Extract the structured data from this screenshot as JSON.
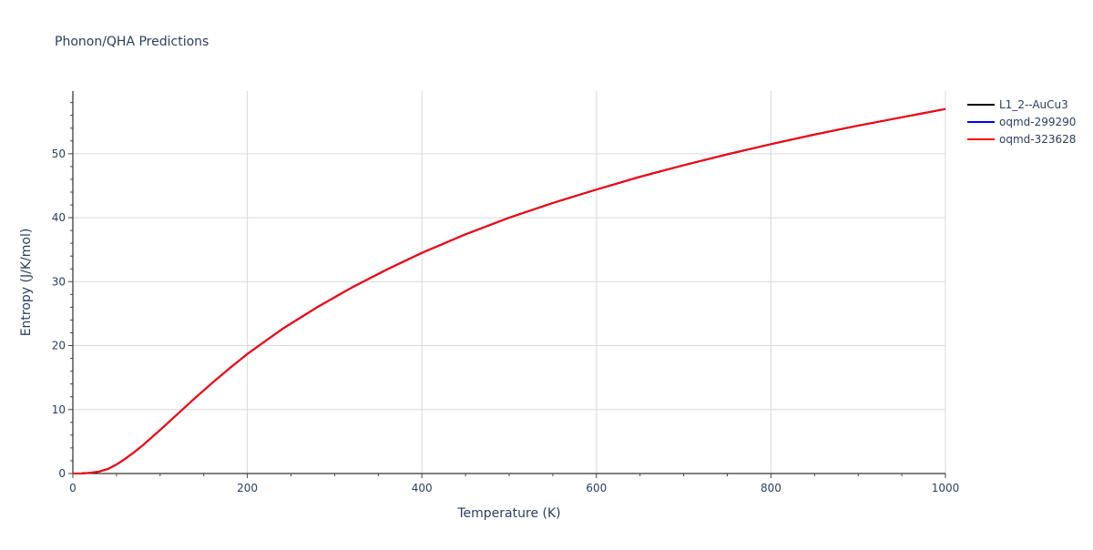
{
  "chart_data": {
    "type": "line",
    "title": "Phonon/QHA Predictions",
    "xlabel": "Temperature (K)",
    "ylabel": "Entropy (J/K/mol)",
    "xlim": [
      0,
      1000
    ],
    "ylim": [
      0,
      59.8
    ],
    "xticks": [
      0,
      200,
      400,
      600,
      800,
      1000
    ],
    "yticks": [
      0,
      10,
      20,
      30,
      40,
      50
    ],
    "grid": true,
    "legend_position": "top-right",
    "x": [
      0,
      10,
      20,
      30,
      40,
      50,
      60,
      70,
      80,
      90,
      100,
      120,
      140,
      160,
      180,
      200,
      240,
      280,
      320,
      360,
      400,
      450,
      500,
      550,
      600,
      650,
      700,
      750,
      800,
      850,
      900,
      950,
      1000
    ],
    "series": [
      {
        "name": "L1_2--AuCu3",
        "color": "#000000",
        "values": [
          0,
          0.02,
          0.1,
          0.3,
          0.7,
          1.4,
          2.3,
          3.3,
          4.4,
          5.6,
          6.8,
          9.3,
          11.8,
          14.2,
          16.5,
          18.7,
          22.6,
          26.0,
          29.1,
          31.9,
          34.5,
          37.4,
          40.0,
          42.3,
          44.4,
          46.4,
          48.2,
          49.9,
          51.5,
          53.0,
          54.4,
          55.7,
          57.0
        ]
      },
      {
        "name": "oqmd-299290",
        "color": "#0000ff",
        "values": [
          0,
          0.02,
          0.1,
          0.3,
          0.7,
          1.4,
          2.3,
          3.3,
          4.4,
          5.6,
          6.8,
          9.3,
          11.8,
          14.2,
          16.5,
          18.7,
          22.6,
          26.0,
          29.1,
          31.9,
          34.5,
          37.4,
          40.0,
          42.3,
          44.4,
          46.4,
          48.2,
          49.9,
          51.5,
          53.0,
          54.4,
          55.7,
          57.0
        ]
      },
      {
        "name": "oqmd-323628",
        "color": "#ff0000",
        "values": [
          0,
          0.02,
          0.1,
          0.3,
          0.7,
          1.4,
          2.3,
          3.3,
          4.4,
          5.6,
          6.8,
          9.3,
          11.8,
          14.2,
          16.5,
          18.7,
          22.6,
          26.0,
          29.1,
          31.9,
          34.5,
          37.4,
          40.0,
          42.3,
          44.4,
          46.4,
          48.2,
          49.9,
          51.5,
          53.0,
          54.4,
          55.7,
          57.0
        ]
      }
    ]
  }
}
